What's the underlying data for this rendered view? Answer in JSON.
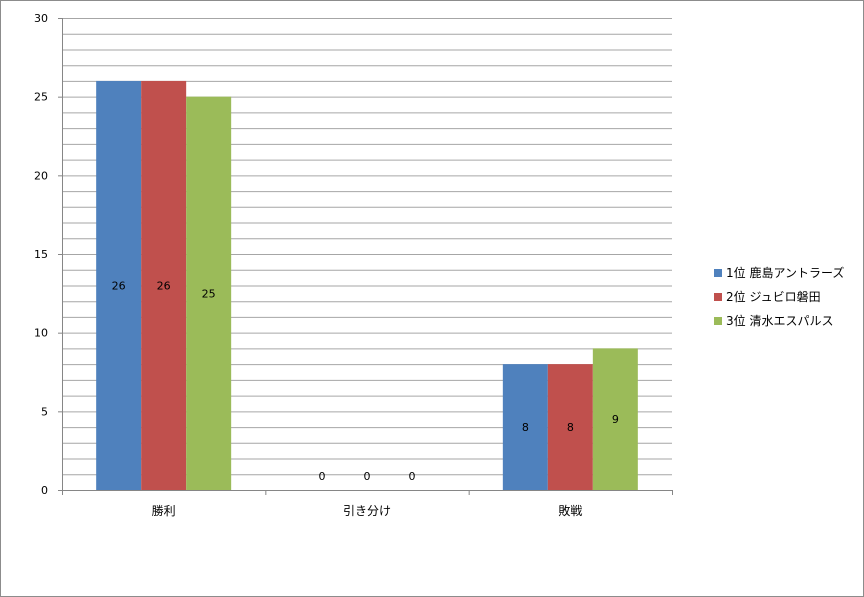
{
  "chart_data": {
    "type": "bar",
    "categories": [
      "勝利",
      "引き分け",
      "敗戦"
    ],
    "series": [
      {
        "name": "1位  鹿島アントラーズ",
        "values": [
          26,
          0,
          8
        ],
        "color": "#4f81bd"
      },
      {
        "name": "2位  ジュビロ磐田",
        "values": [
          26,
          0,
          8
        ],
        "color": "#c0504d"
      },
      {
        "name": "3位  清水エスパルス",
        "values": [
          25,
          0,
          9
        ],
        "color": "#9bbb59"
      }
    ],
    "ylim": [
      0,
      30
    ],
    "y_ticks": [
      0,
      5,
      10,
      15,
      20,
      25,
      30
    ],
    "minor_gridline_step": 1,
    "grid": true,
    "legend_position": "right",
    "data_labels": true
  }
}
